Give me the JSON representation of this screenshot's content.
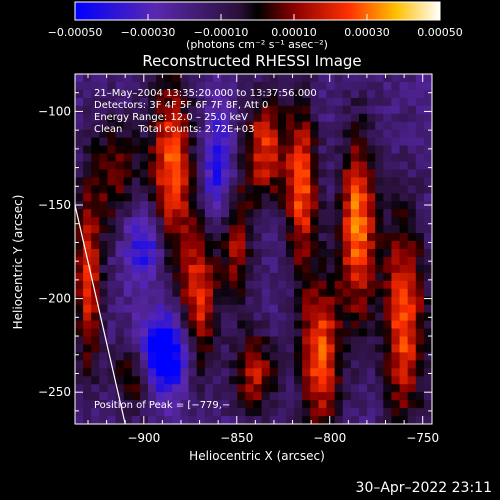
{
  "chart_data": {
    "type": "heatmap",
    "title": "Reconstructed RHESSI Image",
    "xlabel": "Heliocentric X (arcsec)",
    "ylabel": "Heliocentric Y (arcsec)",
    "xlim": [
      -937,
      -745
    ],
    "ylim": [
      -267,
      -80
    ],
    "xticks": [
      -900,
      -850,
      -800,
      -750
    ],
    "xtick_labels": [
      "−900",
      "−850",
      "−800",
      "−750"
    ],
    "yticks": [
      -100,
      -150,
      -200,
      -250
    ],
    "ytick_labels": [
      "−100",
      "−150",
      "−200",
      "−250"
    ],
    "colorbar": {
      "range": [
        -0.0005,
        0.0005
      ],
      "ticks": [
        -0.0005,
        -0.0003,
        -0.0001,
        0.0001,
        0.0003,
        0.0005
      ],
      "tick_labels": [
        "−0.00050",
        "−0.00030",
        "−0.00010",
        "0.00010",
        "0.00030",
        "0.00050"
      ],
      "units": "(photons cm⁻² s⁻¹ asec⁻²)"
    },
    "annotations": [
      "21–May–2004 13:35:20.000 to 13:37:56.000",
      "Detectors: 3F 4F 5F 6F 7F 8F, Att 0",
      "Energy Range: 12.0 – 25.0 keV",
      "Clean     Total counts: 2.72E+03"
    ],
    "peak_label": "Position of Peak = [−779,−",
    "limb_line": {
      "x": [
        -937,
        -910
      ],
      "y": [
        -150,
        -267
      ]
    },
    "features": [
      {
        "x": -930,
        "y": -190,
        "sigma_x": 5,
        "sigma_y": 35,
        "amp": 0.0004
      },
      {
        "x": -915,
        "y": -135,
        "sigma_x": 10,
        "sigma_y": 25,
        "amp": 0.00025
      },
      {
        "x": -905,
        "y": -240,
        "sigma_x": 8,
        "sigma_y": 15,
        "amp": 0.0003
      },
      {
        "x": -885,
        "y": -130,
        "sigma_x": 8,
        "sigma_y": 35,
        "amp": 0.00045
      },
      {
        "x": -870,
        "y": -200,
        "sigma_x": 7,
        "sigma_y": 30,
        "amp": 0.0004
      },
      {
        "x": -850,
        "y": -170,
        "sigma_x": 6,
        "sigma_y": 25,
        "amp": 0.0003
      },
      {
        "x": -835,
        "y": -120,
        "sigma_x": 8,
        "sigma_y": 20,
        "amp": 0.0004
      },
      {
        "x": -840,
        "y": -240,
        "sigma_x": 8,
        "sigma_y": 15,
        "amp": 0.00035
      },
      {
        "x": -815,
        "y": -140,
        "sigma_x": 6,
        "sigma_y": 30,
        "amp": 0.00045
      },
      {
        "x": -805,
        "y": -230,
        "sigma_x": 8,
        "sigma_y": 30,
        "amp": 0.00045
      },
      {
        "x": -785,
        "y": -160,
        "sigma_x": 7,
        "sigma_y": 35,
        "amp": 0.0005
      },
      {
        "x": -760,
        "y": -210,
        "sigma_x": 8,
        "sigma_y": 40,
        "amp": 0.00045
      },
      {
        "x": -890,
        "y": -230,
        "sigma_x": 10,
        "sigma_y": 15,
        "amp": -0.0005
      },
      {
        "x": -900,
        "y": -170,
        "sigma_x": 8,
        "sigma_y": 15,
        "amp": -0.0003
      },
      {
        "x": -860,
        "y": -130,
        "sigma_x": 6,
        "sigma_y": 20,
        "amp": -0.0003
      }
    ]
  },
  "footer": {
    "timestamp": "30–Apr–2022 23:11"
  }
}
